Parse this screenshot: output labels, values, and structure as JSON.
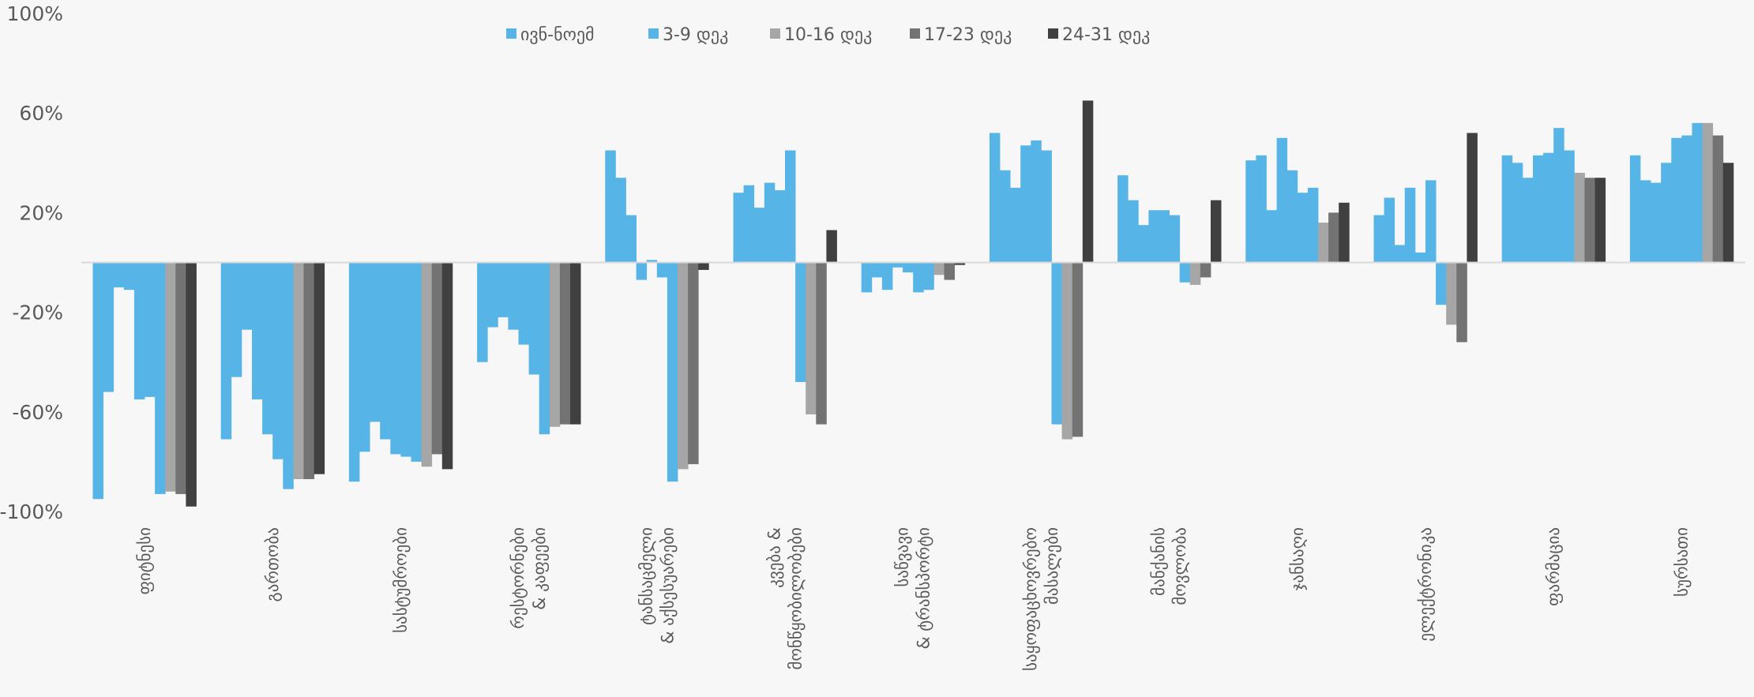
{
  "chart_data": {
    "type": "bar",
    "title": "",
    "xlabel": "",
    "ylabel": "",
    "ylim": [
      -100,
      100
    ],
    "yticks": [
      "100%",
      "60%",
      "20%",
      "-20%",
      "-60%",
      "-100%"
    ],
    "ytick_values": [
      100,
      60,
      20,
      -20,
      -60,
      -100
    ],
    "grid": false,
    "legend_position": "top",
    "legend": [
      {
        "name": "ივნ-ნოემ",
        "color": "#56b4e6"
      },
      {
        "name": "3-9 დეკ",
        "color": "#56b4e6"
      },
      {
        "name": "10-16 დეკ",
        "color": "#a6a6a6"
      },
      {
        "name": "17-23 დეკ",
        "color": "#737373"
      },
      {
        "name": "24-31 დეკ",
        "color": "#404040"
      }
    ],
    "bar_colors": {
      "blue": "#56b4e6",
      "light_grey": "#a6a6a6",
      "mid_grey": "#737373",
      "dark_grey": "#404040"
    },
    "groups": [
      {
        "label": [
          "ფიტნესი"
        ],
        "blue": [
          -95,
          -52,
          -10,
          -11,
          -55,
          -54,
          -93
        ],
        "greys": [
          -92,
          -93,
          -98
        ]
      },
      {
        "label": [
          "გართობა"
        ],
        "blue": [
          -71,
          -46,
          -27,
          -55,
          -69,
          -79,
          -91
        ],
        "greys": [
          -87,
          -87,
          -85
        ]
      },
      {
        "label": [
          "სასტუმროები"
        ],
        "blue": [
          -88,
          -76,
          -64,
          -71,
          -77,
          -78,
          -80
        ],
        "greys": [
          -82,
          -77,
          -83
        ]
      },
      {
        "label": [
          "რესტორნები",
          "& კაფეები"
        ],
        "blue": [
          -40,
          -26,
          -22,
          -27,
          -33,
          -45,
          -69
        ],
        "greys": [
          -66,
          -65,
          -65
        ]
      },
      {
        "label": [
          "ტანსაცმელი",
          "& აქსესუარები"
        ],
        "blue": [
          45,
          34,
          19,
          -7,
          1,
          -6,
          -88
        ],
        "greys": [
          -83,
          -81,
          -3
        ]
      },
      {
        "label": [
          "კვება &",
          "მონწყობილობები"
        ],
        "blue": [
          28,
          31,
          22,
          32,
          29,
          45,
          -48
        ],
        "greys": [
          -61,
          -65,
          13
        ]
      },
      {
        "label": [
          "საწვავი",
          "& ტრანსპორტი"
        ],
        "blue": [
          -12,
          -6,
          -11,
          -2,
          -4,
          -12,
          -11
        ],
        "greys": [
          -5,
          -7,
          -1
        ]
      },
      {
        "label": [
          "საყოფაცხოვრებო",
          "მასალები"
        ],
        "blue": [
          52,
          37,
          30,
          47,
          49,
          45,
          -65
        ],
        "greys": [
          -71,
          -70,
          65
        ]
      },
      {
        "label": [
          "მანქანის",
          "მოვლობა"
        ],
        "blue": [
          35,
          25,
          15,
          21,
          21,
          19,
          -8
        ],
        "greys": [
          -9,
          -6,
          25
        ]
      },
      {
        "label": [
          "ჯანსაღი"
        ],
        "blue": [
          41,
          43,
          21,
          50,
          37,
          28,
          30
        ],
        "greys": [
          16,
          20,
          24
        ]
      },
      {
        "label": [
          "ელექტრონიკა"
        ],
        "blue": [
          19,
          26,
          7,
          30,
          4,
          33,
          -17
        ],
        "greys": [
          -25,
          -32,
          52
        ]
      },
      {
        "label": [
          "ფარმაცია"
        ],
        "blue": [
          43,
          40,
          34,
          43,
          44,
          54,
          45
        ],
        "greys": [
          36,
          34,
          34
        ]
      },
      {
        "label": [
          "სურსათი"
        ],
        "blue": [
          43,
          33,
          32,
          40,
          50,
          51,
          56
        ],
        "greys": [
          56,
          51,
          40
        ]
      }
    ]
  }
}
